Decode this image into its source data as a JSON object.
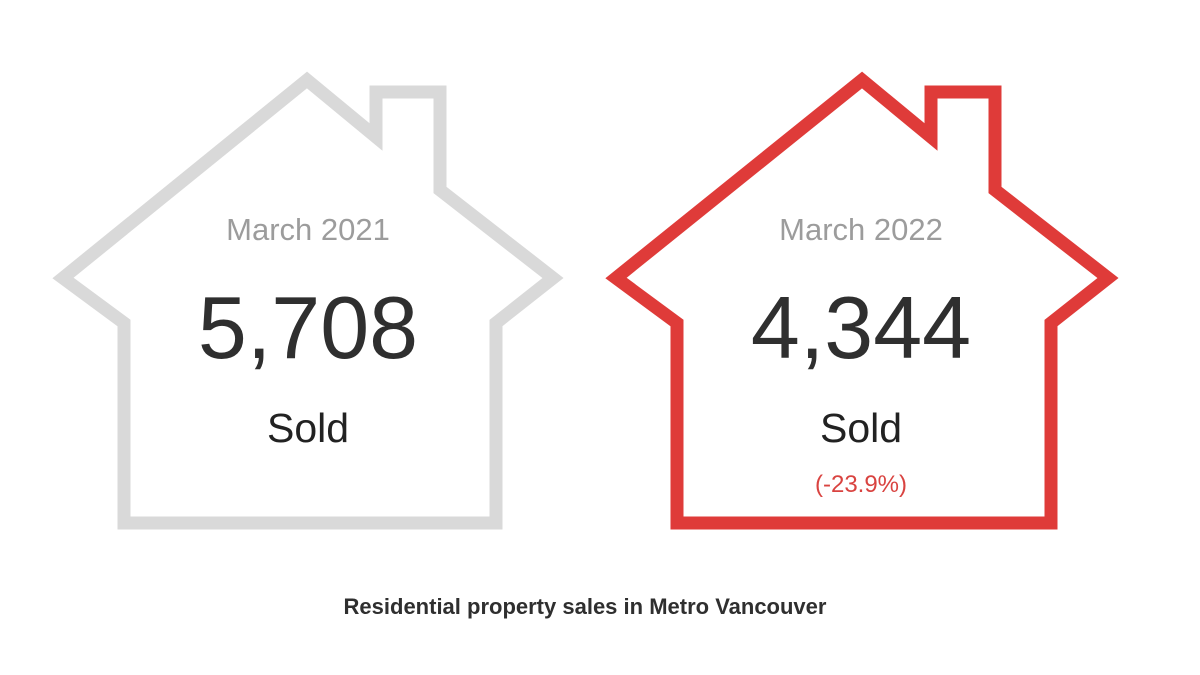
{
  "houses": [
    {
      "period": "March 2021",
      "count": "5,708",
      "sold_label": "Sold",
      "change": "",
      "outline_color": "#d9d9d9"
    },
    {
      "period": "March 2022",
      "count": "4,344",
      "sold_label": "Sold",
      "change": "(-23.9%)",
      "outline_color": "#df3b39"
    }
  ],
  "caption": "Residential property sales in Metro Vancouver",
  "colors": {
    "muted_text": "#9c9c9c",
    "dark_text": "#2f2f2f",
    "change_text": "#d94340"
  }
}
